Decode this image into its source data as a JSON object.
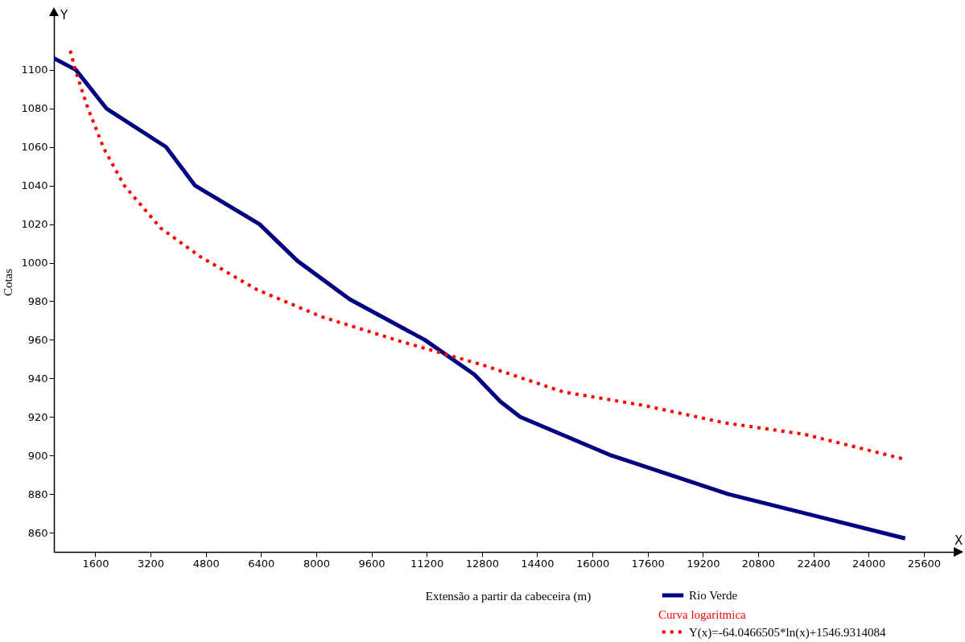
{
  "chart_data": {
    "type": "line",
    "xlabel": "Extensão a partir da cabeceira (m)",
    "ylabel": "Cotas",
    "xlim": [
      400,
      26700
    ],
    "ylim": [
      850,
      1130
    ],
    "xticks": [
      1600,
      3200,
      4800,
      6400,
      8000,
      9600,
      11200,
      12800,
      14400,
      16000,
      17600,
      19200,
      20800,
      22400,
      24000,
      25600
    ],
    "yticks": [
      860,
      880,
      900,
      920,
      940,
      960,
      980,
      1000,
      1020,
      1040,
      1060,
      1080,
      1100
    ],
    "legend": "bottom right",
    "series": [
      {
        "name": "Rio Verde",
        "color": "#000080",
        "line_style": "solid",
        "x": [
          400,
          1036,
          1920,
          3650,
          4490,
          6355,
          7450,
          8970,
          11140,
          12580,
          13330,
          13910,
          16550,
          19930,
          25060
        ],
        "values": [
          1106,
          1100,
          1080,
          1060,
          1040,
          1020,
          1001,
          981,
          960,
          942,
          928,
          920,
          900,
          880,
          857
        ]
      },
      {
        "name": "Y(x)=-64.0466505*ln(x)+1546.9314084",
        "color": "#ff0000",
        "line_style": "dotted",
        "x": [
          872,
          1036,
          1386,
          1853,
          2440,
          3490,
          4650,
          6285,
          8150,
          10480,
          12815,
          15150,
          17480,
          19810,
          22140,
          25060
        ],
        "values": [
          1110,
          1099,
          1080,
          1059,
          1040,
          1018,
          1003,
          986,
          972,
          959,
          947,
          933,
          926,
          917,
          911,
          898
        ]
      }
    ],
    "annotations": [
      "Y",
      "X",
      "Curva logaritmica"
    ]
  }
}
